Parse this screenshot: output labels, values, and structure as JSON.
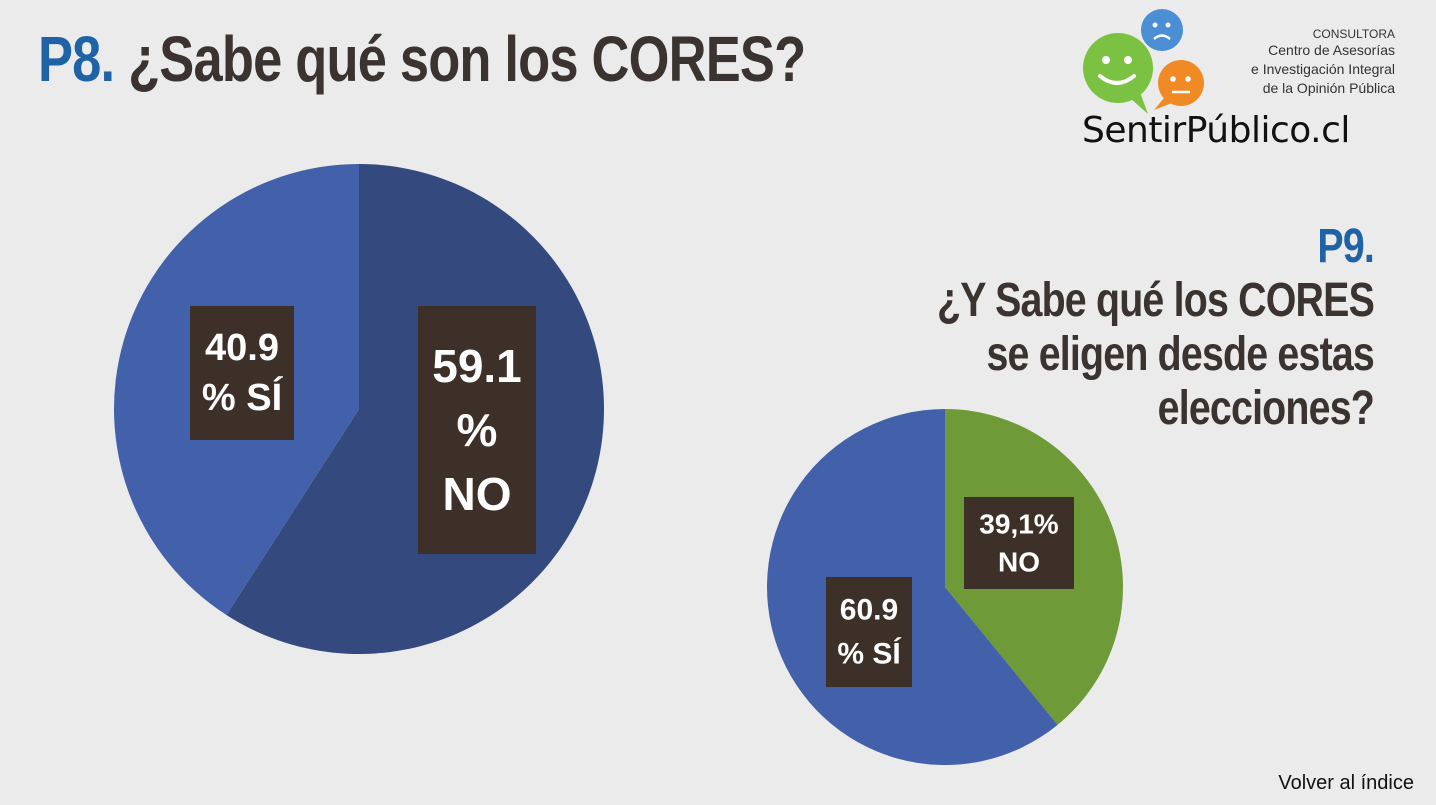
{
  "p8": {
    "number": "P8.",
    "question": "¿Sabe qué son los CORES?"
  },
  "p9": {
    "number": "P9.",
    "question_lines": [
      "¿Y Sabe qué los CORES",
      "se eligen desde estas",
      "elecciones?"
    ]
  },
  "logo": {
    "line1": "CONSULTORA",
    "line2": "Centro de Asesorías",
    "line3": "e Investigación Integral",
    "line4": "de la Opinión Pública",
    "brand": "SentirPúblico.cl"
  },
  "footer": {
    "back_link": "Volver al índice"
  },
  "colors": {
    "p8_si": "#4361aa",
    "p8_no": "#344a7e",
    "p9_si": "#4361aa",
    "p9_no": "#6f9a38",
    "label_bg": "#3d3028"
  },
  "chart_data": [
    {
      "type": "pie",
      "question": "P8",
      "slices": [
        {
          "name": "NO",
          "value": 59.1,
          "label_lines": [
            "59.1",
            "%",
            "NO"
          ]
        },
        {
          "name": "SÍ",
          "value": 40.9,
          "label_lines": [
            "40.9",
            "% SÍ"
          ]
        }
      ]
    },
    {
      "type": "pie",
      "question": "P9",
      "slices": [
        {
          "name": "NO",
          "value": 39.1,
          "label_lines": [
            "39,1%",
            "NO"
          ]
        },
        {
          "name": "SÍ",
          "value": 60.9,
          "label_lines": [
            "60.9",
            "% SÍ"
          ]
        }
      ]
    }
  ]
}
